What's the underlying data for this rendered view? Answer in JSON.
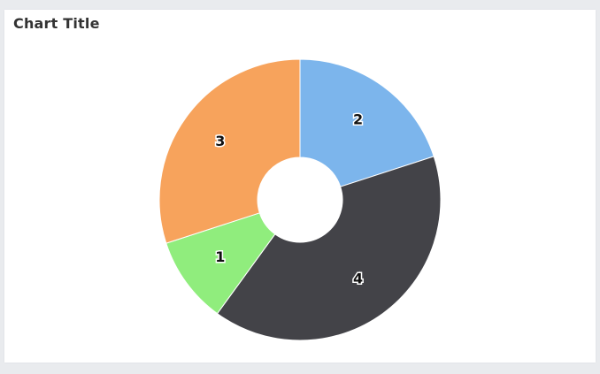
{
  "chart_data": {
    "type": "pie",
    "title": "Chart Title",
    "hole": true,
    "slices": [
      {
        "label": "2",
        "value": 2,
        "color": "#7cb5ec"
      },
      {
        "label": "4",
        "value": 4,
        "color": "#434348"
      },
      {
        "label": "1",
        "value": 1,
        "color": "#90ed7d"
      },
      {
        "label": "3",
        "value": 3,
        "color": "#f7a35c"
      }
    ]
  }
}
